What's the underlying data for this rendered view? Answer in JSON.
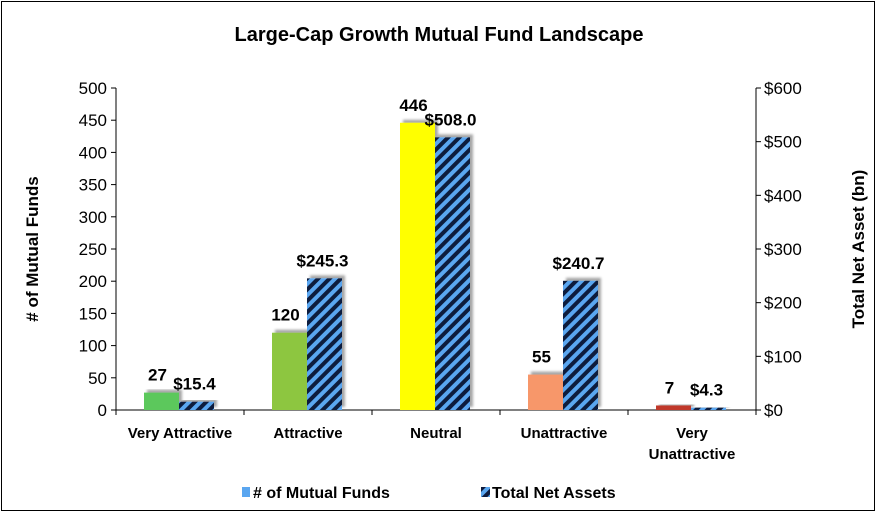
{
  "chart_data": {
    "type": "bar",
    "title": "Large-Cap Growth Mutual Fund Landscape",
    "categories": [
      [
        "Very Attractive"
      ],
      [
        "Attractive"
      ],
      [
        "Neutral"
      ],
      [
        "Unattractive"
      ],
      [
        "Very",
        "Unattractive"
      ]
    ],
    "category_colors": [
      "#5cc85c",
      "#8dc63f",
      "#ffff00",
      "#f7976a",
      "#c0392b"
    ],
    "series": [
      {
        "name": "# of Mutual Funds",
        "axis": "left",
        "values": [
          27,
          120,
          446,
          55,
          7
        ],
        "value_labels": [
          "27",
          "120",
          "446",
          "55",
          "7"
        ],
        "legend_color": "#5aa6f0"
      },
      {
        "name": "Total Net Assets",
        "axis": "right",
        "values": [
          15.4,
          245.3,
          508.0,
          240.7,
          4.3
        ],
        "value_labels": [
          "$15.4",
          "$245.3",
          "$508.0",
          "$240.7",
          "$4.3"
        ],
        "pattern": "diagonal-stripes",
        "pattern_colors": [
          "#0d1b3e",
          "#5aa6f0"
        ]
      }
    ],
    "y_left": {
      "label": "# of Mutual Funds",
      "ylim": [
        0,
        500
      ],
      "ticks": [
        0,
        50,
        100,
        150,
        200,
        250,
        300,
        350,
        400,
        450,
        500
      ],
      "tick_labels": [
        "0",
        "50",
        "100",
        "150",
        "200",
        "250",
        "300",
        "350",
        "400",
        "450",
        "500"
      ]
    },
    "y_right": {
      "label": "Total Net Asset (bn)",
      "ylim": [
        0,
        600
      ],
      "ticks": [
        0,
        100,
        200,
        300,
        400,
        500,
        600
      ],
      "tick_labels": [
        "$0",
        "$100",
        "$200",
        "$300",
        "$400",
        "$500",
        "$600"
      ]
    },
    "grid": false,
    "legend_position": "bottom"
  }
}
